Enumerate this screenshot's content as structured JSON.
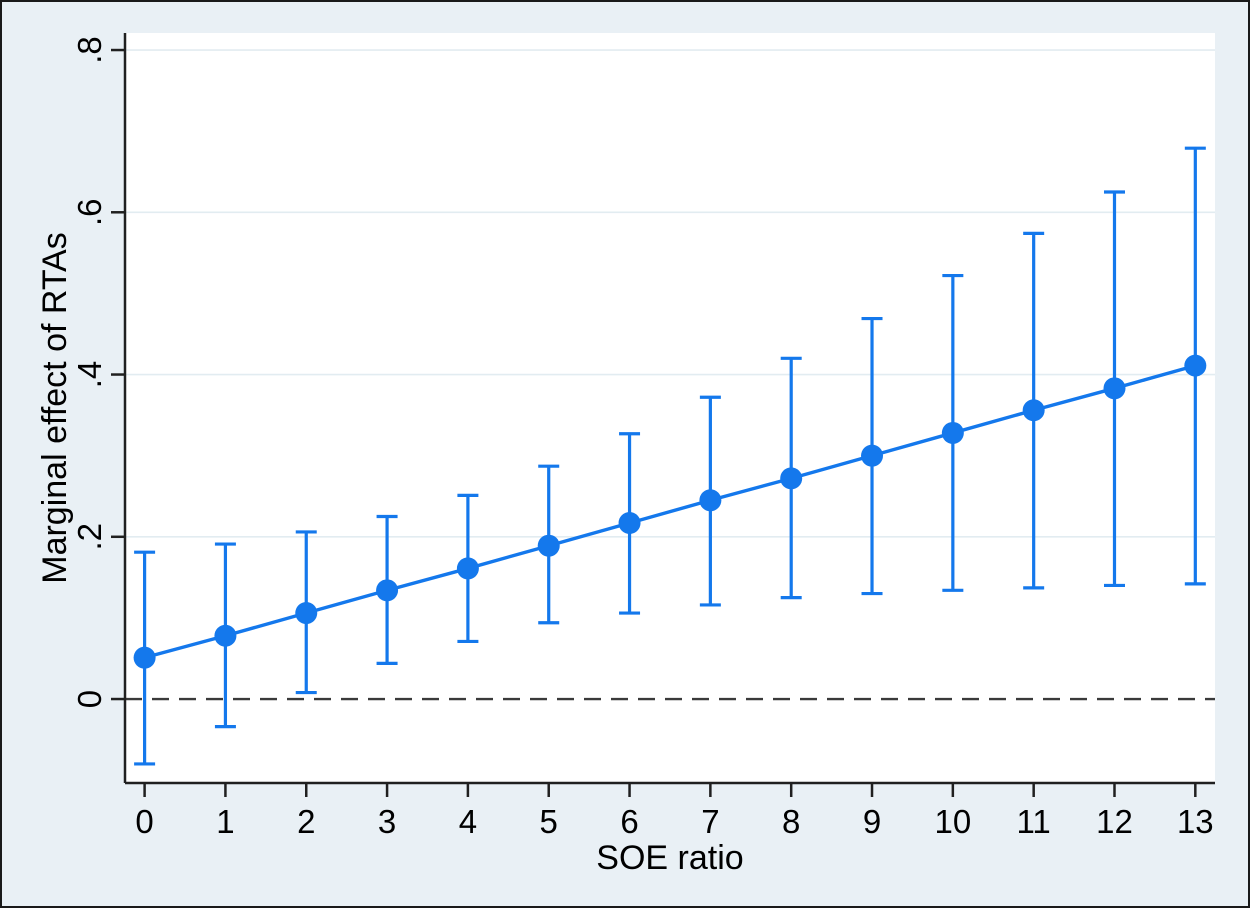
{
  "figure": {
    "background_color": "#e9f0f5",
    "plot_background_color": "#ffffff",
    "outer_border_color": "#1a1a1a",
    "axis_color": "#202020",
    "gridline_color": "#e2ecf1",
    "zero_line_color": "#3a3a3a",
    "series_color": "#1478ec"
  },
  "chart_data": {
    "type": "line",
    "title": "",
    "xlabel": "SOE ratio",
    "ylabel": "Marginal effect of RTAs",
    "x": [
      0,
      1,
      2,
      3,
      4,
      5,
      6,
      7,
      8,
      9,
      10,
      11,
      12,
      13
    ],
    "series": [
      {
        "name": "Marginal effect of RTAs",
        "values": [
          0.051,
          0.078,
          0.106,
          0.134,
          0.161,
          0.189,
          0.217,
          0.245,
          0.272,
          0.3,
          0.328,
          0.356,
          0.383,
          0.411
        ],
        "ci_lower": [
          -0.08,
          -0.034,
          0.008,
          0.044,
          0.071,
          0.094,
          0.106,
          0.116,
          0.125,
          0.13,
          0.134,
          0.137,
          0.14,
          0.142
        ],
        "ci_upper": [
          0.181,
          0.191,
          0.206,
          0.225,
          0.251,
          0.287,
          0.327,
          0.372,
          0.42,
          0.469,
          0.522,
          0.574,
          0.625,
          0.679
        ]
      }
    ],
    "xticks": [
      {
        "value": 0,
        "label": "0"
      },
      {
        "value": 1,
        "label": "1"
      },
      {
        "value": 2,
        "label": "2"
      },
      {
        "value": 3,
        "label": "3"
      },
      {
        "value": 4,
        "label": "4"
      },
      {
        "value": 5,
        "label": "5"
      },
      {
        "value": 6,
        "label": "6"
      },
      {
        "value": 7,
        "label": "7"
      },
      {
        "value": 8,
        "label": "8"
      },
      {
        "value": 9,
        "label": "9"
      },
      {
        "value": 10,
        "label": "10"
      },
      {
        "value": 11,
        "label": "11"
      },
      {
        "value": 12,
        "label": "12"
      },
      {
        "value": 13,
        "label": "13"
      }
    ],
    "yticks": [
      {
        "value": 0,
        "label": "0"
      },
      {
        "value": 0.2,
        "label": ".2"
      },
      {
        "value": 0.4,
        "label": ".4"
      },
      {
        "value": 0.6,
        "label": ".6"
      },
      {
        "value": 0.8,
        "label": ".8"
      }
    ],
    "xlim": [
      -0.2425,
      13.2435
    ],
    "ylim": [
      -0.1035,
      0.821
    ],
    "grid": "horizontal",
    "zero_reference_line": true,
    "legend": "none"
  }
}
